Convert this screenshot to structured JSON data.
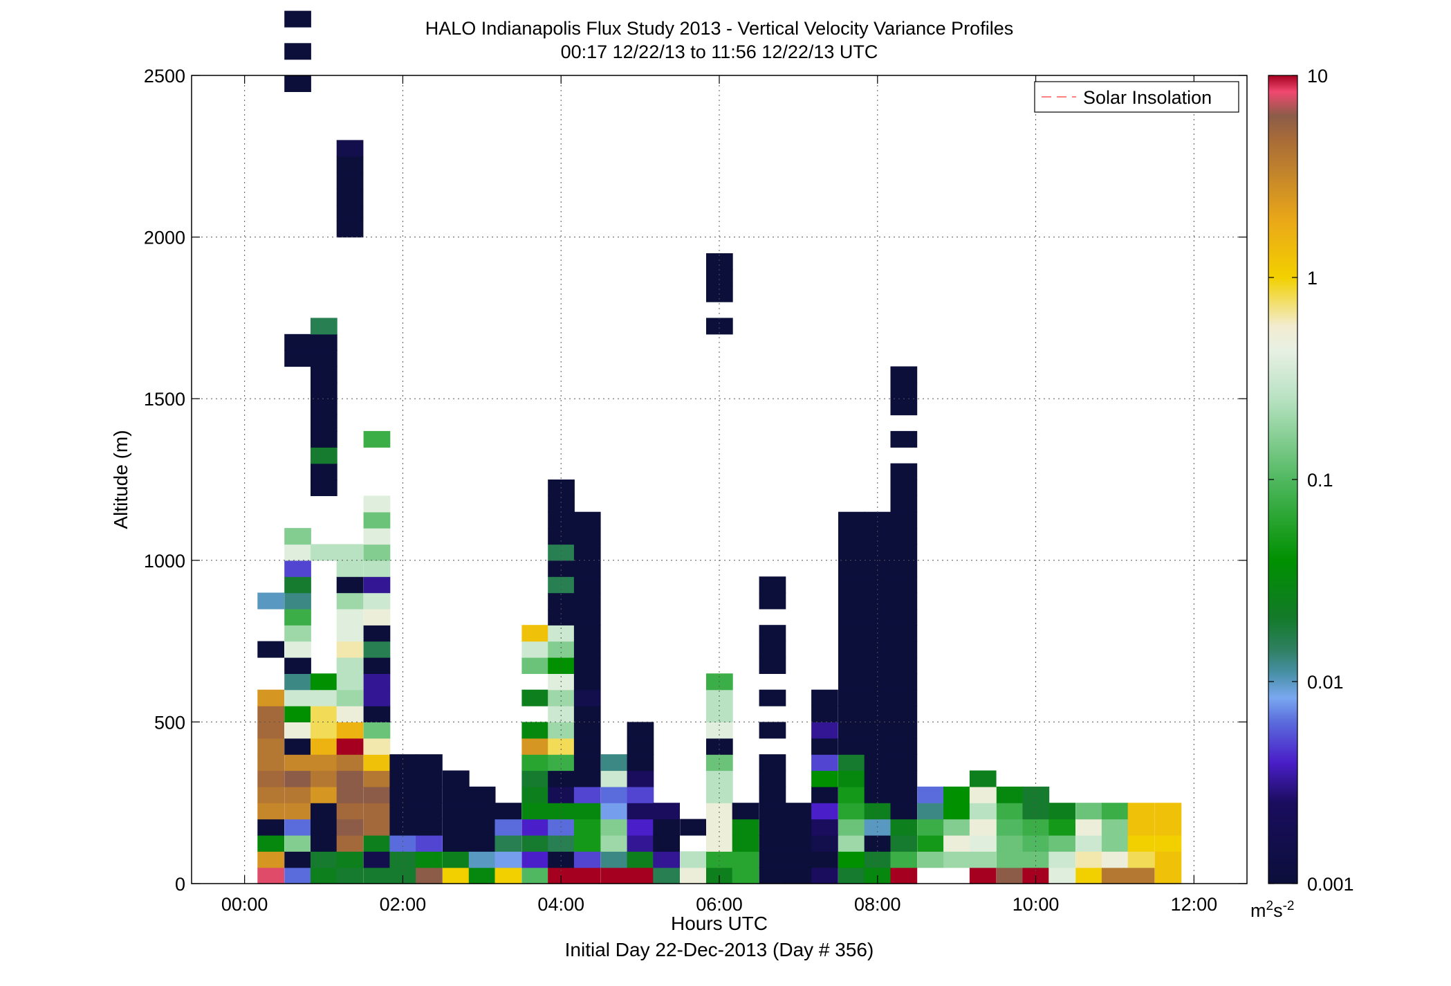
{
  "chart_data": {
    "type": "heatmap",
    "title": "HALO Indianapolis Flux Study 2013 - Vertical Velocity Variance Profiles",
    "subtitle": "00:17 12/22/13 to 11:56 12/22/13  UTC",
    "xlabel": "Hours UTC",
    "xlabel2": "Initial Day 22-Dec-2013 (Day # 356)",
    "ylabel": "Altitude (m)",
    "xlim": [
      -0.67,
      12.67
    ],
    "ylim": [
      0,
      2500
    ],
    "x_ticks": [
      0,
      2,
      4,
      6,
      8,
      10,
      12
    ],
    "x_tick_labels": [
      "00:00",
      "02:00",
      "04:00",
      "06:00",
      "08:00",
      "10:00",
      "12:00"
    ],
    "y_ticks": [
      0,
      500,
      1000,
      1500,
      2000,
      2500
    ],
    "y_tick_labels": [
      "0",
      "500",
      "1000",
      "1500",
      "2000",
      "2500"
    ],
    "grid": true,
    "legend": {
      "position": "top-right",
      "entries": [
        {
          "name": "Solar Insolation",
          "color": "#ff8080",
          "style": "dashed"
        }
      ]
    },
    "colorbar": {
      "scale": "log",
      "range": [
        0.001,
        10
      ],
      "ticks": [
        0.001,
        0.01,
        0.1,
        1,
        10
      ],
      "tick_labels": [
        "0.001",
        "0.01",
        "0.1",
        "1",
        "10"
      ],
      "units_base": "m",
      "units_sup1": "2",
      "units_mid": "s",
      "units_sup2": "-2",
      "stops": [
        {
          "t": 0.0,
          "color": "#0b0f3a"
        },
        {
          "t": 0.1,
          "color": "#1a0d5e"
        },
        {
          "t": 0.15,
          "color": "#4a1ec8"
        },
        {
          "t": 0.2,
          "color": "#5a6cdc"
        },
        {
          "t": 0.23,
          "color": "#7aa8f0"
        },
        {
          "t": 0.26,
          "color": "#4890a8"
        },
        {
          "t": 0.29,
          "color": "#2e8060"
        },
        {
          "t": 0.33,
          "color": "#127a28"
        },
        {
          "t": 0.4,
          "color": "#009000"
        },
        {
          "t": 0.5,
          "color": "#50b860"
        },
        {
          "t": 0.6,
          "color": "#b8e2c2"
        },
        {
          "t": 0.66,
          "color": "#e8f0e4"
        },
        {
          "t": 0.69,
          "color": "#f2ecd0"
        },
        {
          "t": 0.75,
          "color": "#f2d000"
        },
        {
          "t": 0.82,
          "color": "#eaa818"
        },
        {
          "t": 0.92,
          "color": "#a86c38"
        },
        {
          "t": 0.95,
          "color": "#8c5c48"
        },
        {
          "t": 0.98,
          "color": "#f04870"
        },
        {
          "t": 1.0,
          "color": "#a50020"
        }
      ]
    },
    "column_width_h": 0.333,
    "row_height_m": 50,
    "columns": [
      {
        "t": 0.33,
        "z0": 25,
        "logv": [
          0.9,
          0.4,
          -1.5,
          -3.2,
          0.5,
          0.6,
          0.7,
          0.6,
          0.6,
          0.7,
          0.7,
          0.4,
          null,
          null,
          -3.0,
          null,
          null,
          -2.0
        ]
      },
      {
        "t": 0.67,
        "z0": 25,
        "logv": [
          -2.2,
          -3.0,
          -0.8,
          -2.2,
          0.5,
          0.6,
          0.8,
          0.5,
          -3.5,
          -0.3,
          -1.4,
          -0.5,
          -1.9,
          -3.2,
          -0.4,
          -0.7,
          -1.1,
          -1.9,
          -1.7,
          -2.3,
          -0.4,
          -0.8,
          null,
          null,
          null,
          null,
          null,
          null,
          null,
          null,
          null,
          null,
          -3.5,
          -3.2,
          null,
          null,
          null,
          null,
          null,
          null,
          null,
          null,
          null,
          null,
          null,
          null,
          null,
          null,
          null,
          -3.3,
          null,
          -3.5,
          null,
          -3.4
        ]
      },
      {
        "t": 1.0,
        "z0": 25,
        "logv": [
          -1.6,
          -1.7,
          -3.5,
          -3.3,
          -3.5,
          0.4,
          0.6,
          0.5,
          0.2,
          -0.1,
          -0.1,
          -0.5,
          -1.4,
          null,
          null,
          null,
          null,
          null,
          null,
          null,
          -0.6,
          null,
          null,
          null,
          -3.5,
          -3.5,
          -1.7,
          -3.5,
          -3.5,
          -3.5,
          -3.5,
          -3.5,
          -3.5,
          -3.1,
          -1.8
        ]
      },
      {
        "t": 1.33,
        "z0": 25,
        "logv": [
          -1.7,
          -1.6,
          0.7,
          0.8,
          0.7,
          0.8,
          0.8,
          0.6,
          1.3,
          0.2,
          -0.3,
          -0.7,
          -0.6,
          -0.6,
          -0.2,
          -0.4,
          -0.4,
          -0.7,
          -3.5,
          -0.6,
          -0.6,
          null,
          null,
          null,
          null,
          null,
          null,
          null,
          null,
          null,
          null,
          null,
          null,
          null,
          null,
          null,
          null,
          null,
          null,
          null,
          -3.5,
          -3.4,
          -3.1,
          -3.5,
          -3.5,
          -2.8
        ]
      },
      {
        "t": 1.67,
        "z0": 25,
        "logv": [
          -1.7,
          -2.8,
          -1.6,
          0.7,
          0.7,
          0.8,
          0.6,
          0.1,
          -0.2,
          -0.9,
          -3.5,
          -2.5,
          -2.5,
          -3.5,
          -1.8,
          -3.2,
          -0.3,
          -0.5,
          -2.5,
          -0.6,
          -0.8,
          -0.4,
          -0.9,
          -0.4,
          null,
          null,
          null,
          -1.1
        ]
      },
      {
        "t": 2.0,
        "z0": 25,
        "logv": [
          -1.7,
          -1.7,
          -2.2,
          -3.3,
          -3.5,
          -3.5,
          -3.5,
          -3.5
        ]
      },
      {
        "t": 2.33,
        "z0": 25,
        "logv": [
          0.8,
          -1.5,
          -2.3,
          -3.4,
          -3.5,
          -3.5,
          -3.5,
          -3.5
        ]
      },
      {
        "t": 2.67,
        "z0": 25,
        "logv": [
          0.0,
          -1.6,
          -3.5,
          -3.5,
          -3.5,
          -3.5,
          -3.5
        ]
      },
      {
        "t": 3.0,
        "z0": 25,
        "logv": [
          -1.5,
          -2.0,
          -3.5,
          -3.5,
          -3.5,
          -3.5
        ]
      },
      {
        "t": 3.33,
        "z0": 25,
        "logv": [
          0.0,
          -2.1,
          -1.8,
          -2.2,
          -3.5
        ]
      },
      {
        "t": 3.67,
        "z0": 25,
        "logv": [
          -1.0,
          -2.4,
          -1.7,
          -2.4,
          -1.5,
          -1.6,
          -1.7,
          -1.2,
          0.4,
          -1.5,
          null,
          -1.6,
          null,
          -0.9,
          -0.5,
          0.1
        ]
      },
      {
        "t": 4.0,
        "z0": 25,
        "logv": [
          1.3,
          -3.0,
          -1.8,
          -2.2,
          -1.5,
          -2.7,
          -3.5,
          -1.1,
          -0.1,
          -0.7,
          -0.5,
          -0.7,
          -0.4,
          -1.4,
          -0.8,
          -0.5,
          -3.0,
          -3.5,
          -1.8,
          -3.5,
          -1.8,
          -3.5,
          -3.5,
          -3.5,
          -3.5
        ]
      },
      {
        "t": 4.33,
        "z0": 25,
        "logv": [
          1.3,
          -2.3,
          -1.3,
          -1.3,
          -1.5,
          -2.3,
          -3.5,
          -3.5,
          -3.5,
          -3.5,
          -3.5,
          -2.8,
          -3.1,
          -3.5,
          -3.5,
          -3.5,
          -3.5,
          -3.5,
          -3.5,
          -3.5,
          -3.5,
          -3.5,
          -3.5
        ]
      },
      {
        "t": 4.67,
        "z0": 25,
        "logv": [
          1.3,
          -1.9,
          -0.7,
          -0.8,
          -2.1,
          -2.2,
          -0.5,
          -1.9
        ]
      },
      {
        "t": 5.0,
        "z0": 25,
        "logv": [
          1.3,
          -1.6,
          -2.5,
          -2.4,
          -2.6,
          -2.3,
          -2.6,
          -3.2,
          -3.5,
          -3.5
        ]
      },
      {
        "t": 5.33,
        "z0": 25,
        "logv": [
          -1.8,
          -2.5,
          -3.5,
          -3.5,
          -2.6
        ]
      },
      {
        "t": 5.67,
        "z0": 25,
        "logv": [
          -0.3,
          -0.6,
          null,
          -3.4
        ]
      },
      {
        "t": 6.0,
        "z0": 25,
        "logv": [
          -1.6,
          -1.2,
          -0.3,
          -0.3,
          -0.3,
          -0.6,
          -0.6,
          -0.9,
          -3.5,
          -0.4,
          -0.6,
          -0.6,
          -1.1,
          null,
          null,
          null,
          null,
          null,
          null,
          null,
          null,
          null,
          null,
          null,
          null,
          null,
          null,
          null,
          null,
          null,
          null,
          null,
          null,
          null,
          -3.5,
          null,
          -3.5,
          -3.5,
          -3.5
        ]
      },
      {
        "t": 6.33,
        "z0": 25,
        "logv": [
          -1.2,
          -1.2,
          -1.5,
          -1.5,
          -3.5
        ]
      },
      {
        "t": 6.67,
        "z0": 25,
        "logv": [
          -3.5,
          -3.5,
          -3.5,
          -3.5,
          -3.5,
          -3.5,
          -3.5,
          -3.5,
          null,
          -3.5,
          null,
          -3.5,
          null,
          -3.5,
          -3.5,
          -3.5,
          null,
          -3.5,
          -3.5
        ]
      },
      {
        "t": 7.0,
        "z0": 25,
        "logv": [
          -3.5,
          -3.5,
          -3.5,
          -3.5,
          -3.5
        ]
      },
      {
        "t": 7.33,
        "z0": 25,
        "logv": [
          -2.6,
          -3.3,
          -2.8,
          -2.6,
          -2.4,
          -3.0,
          -1.4,
          -2.3,
          -3.2,
          -2.5,
          -3.5,
          -3.5
        ]
      },
      {
        "t": 7.67,
        "z0": 25,
        "logv": [
          -1.7,
          -1.4,
          -0.7,
          -0.9,
          -1.2,
          -1.3,
          -1.5,
          -1.7,
          -3.3,
          -3.5,
          -3.5,
          -3.5,
          -3.5,
          -3.5,
          -3.5,
          -3.5,
          -3.5,
          -3.5,
          -3.5,
          -3.5,
          -3.5,
          -3.5,
          -3.5
        ]
      },
      {
        "t": 8.0,
        "z0": 25,
        "logv": [
          -1.5,
          -1.7,
          -3.3,
          -2.0,
          -1.6,
          -3.4,
          -3.5,
          -3.5,
          -3.5,
          -3.5,
          -3.5,
          -3.5,
          -3.5,
          -3.5,
          -3.5,
          -3.4,
          -3.1,
          -3.5,
          -3.5,
          -3.5,
          -3.5,
          -3.5,
          -3.5
        ]
      },
      {
        "t": 8.33,
        "z0": 25,
        "logv": [
          1.1,
          -1.1,
          -1.7,
          -1.6,
          -3.0,
          -3.5,
          -3.5,
          -3.1,
          -3.5,
          -3.5,
          -3.5,
          -3.5,
          -3.5,
          -3.5,
          -3.5,
          -3.5,
          -3.5,
          -3.5,
          -3.5,
          -3.5,
          -3.5,
          -3.5,
          -3.5,
          -3.5,
          -3.5,
          -3.5,
          null,
          -3.5,
          null,
          -3.5,
          -3.5,
          -3.3
        ]
      },
      {
        "t": 8.67,
        "z0": 75,
        "logv": [
          -0.8,
          -1.3,
          -1.1,
          -1.9,
          -2.2
        ]
      },
      {
        "t": 9.0,
        "z0": 75,
        "logv": [
          -0.7,
          -0.3,
          -0.8,
          -1.4,
          -1.4
        ]
      },
      {
        "t": 9.33,
        "z0": 25,
        "logv": [
          1.3,
          -0.7,
          -0.4,
          -0.3,
          -0.6,
          -0.3,
          -1.6
        ]
      },
      {
        "t": 9.67,
        "z0": 25,
        "logv": [
          0.8,
          -0.9,
          -0.9,
          -1.0,
          -1.1,
          -1.5
        ]
      },
      {
        "t": 10.0,
        "z0": 25,
        "logv": [
          1.3,
          -0.9,
          -1.0,
          -1.1,
          -1.7,
          -1.7
        ]
      },
      {
        "t": 10.33,
        "z0": 25,
        "logv": [
          -0.4,
          -0.5,
          -0.9,
          -1.3,
          -1.6
        ]
      },
      {
        "t": 10.67,
        "z0": 25,
        "logv": [
          0.0,
          -0.2,
          -0.5,
          -0.3,
          -0.9
        ]
      },
      {
        "t": 11.0,
        "z0": 25,
        "logv": [
          0.6,
          -0.3,
          -0.8,
          -0.8,
          -1.1
        ]
      },
      {
        "t": 11.33,
        "z0": 25,
        "logv": [
          0.6,
          -0.1,
          0.0,
          0.1,
          0.1
        ]
      },
      {
        "t": 11.67,
        "z0": 25,
        "logv": [
          0.1,
          0.1,
          0.0,
          0.1,
          0.1
        ]
      }
    ]
  }
}
